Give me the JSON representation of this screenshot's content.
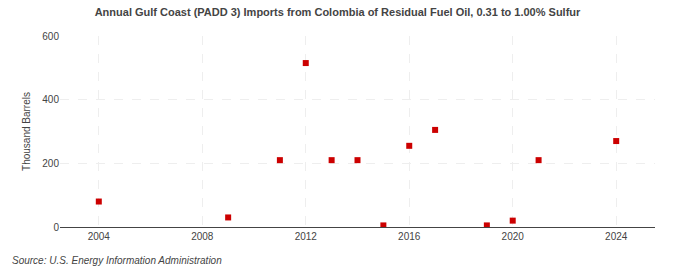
{
  "chart_data": {
    "type": "scatter",
    "title": "Annual Gulf Coast (PADD 3) Imports from Colombia of Residual Fuel Oil, 0.31 to 1.00% Sulfur",
    "y_label": "Thousand Barrels",
    "annotations": [
      "Source: U.S. Energy Information Administration"
    ],
    "x": [
      2004,
      2009,
      2011,
      2012,
      2013,
      2014,
      2015,
      2016,
      2017,
      2019,
      2020,
      2021,
      2024
    ],
    "values": [
      80,
      30,
      210,
      515,
      210,
      210,
      5,
      255,
      305,
      5,
      20,
      210,
      270
    ],
    "color": "#cc0000",
    "marker": "square",
    "xlim": [
      2002.5,
      2025.5
    ],
    "xticks": [
      2004,
      2008,
      2012,
      2016,
      2020,
      2024
    ],
    "ylim": [
      0,
      600
    ],
    "yticks": [
      0,
      200,
      400,
      600
    ],
    "grid": true
  }
}
